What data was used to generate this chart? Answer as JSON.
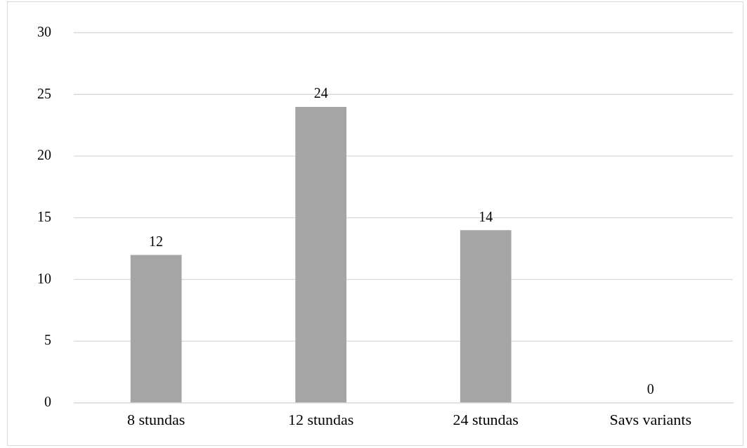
{
  "chart_data": {
    "type": "bar",
    "categories": [
      "8 stundas",
      "12 stundas",
      "24 stundas",
      "Savs variants"
    ],
    "values": [
      12,
      24,
      14,
      0
    ],
    "color": "#a5a5a5",
    "ylim": [
      0,
      30
    ],
    "yticks": [
      0,
      5,
      10,
      15,
      20,
      25,
      30
    ],
    "grid": "y",
    "data_labels": true
  }
}
